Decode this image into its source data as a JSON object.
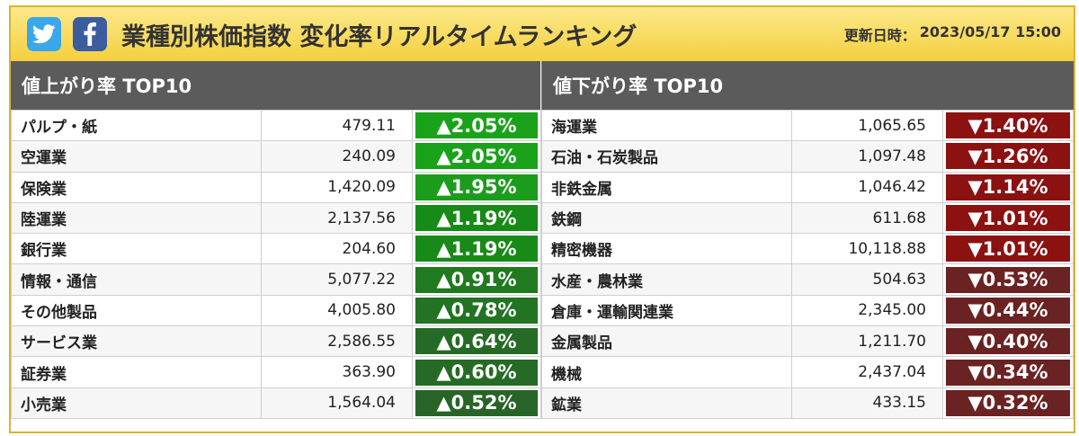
{
  "header": {
    "twitter_icon": "twitter-bird-icon",
    "facebook_icon": "facebook-f-icon",
    "title": "業種別株価指数 変化率リアルタイムランキング",
    "updated_label": "更新日時：",
    "updated_value": "2023/05/17 15:00"
  },
  "gainers": {
    "heading": "値上がり率 TOP10",
    "rows": [
      {
        "name": "パルプ・紙",
        "value": "479.11",
        "change": "▲2.05%",
        "color": "#1aa31a"
      },
      {
        "name": "空運業",
        "value": "240.09",
        "change": "▲2.05%",
        "color": "#1aa31a"
      },
      {
        "name": "保険業",
        "value": "1,420.09",
        "change": "▲1.95%",
        "color": "#1c9c1c"
      },
      {
        "name": "陸運業",
        "value": "2,137.56",
        "change": "▲1.19%",
        "color": "#178a17"
      },
      {
        "name": "銀行業",
        "value": "204.60",
        "change": "▲1.19%",
        "color": "#178a17"
      },
      {
        "name": "情報・通信",
        "value": "5,077.22",
        "change": "▲0.91%",
        "color": "#207a20"
      },
      {
        "name": "その他製品",
        "value": "4,005.80",
        "change": "▲0.78%",
        "color": "#227322"
      },
      {
        "name": "サービス業",
        "value": "2,586.55",
        "change": "▲0.64%",
        "color": "#256b25"
      },
      {
        "name": "証券業",
        "value": "363.90",
        "change": "▲0.60%",
        "color": "#256b25"
      },
      {
        "name": "小売業",
        "value": "1,564.04",
        "change": "▲0.52%",
        "color": "#286428"
      }
    ]
  },
  "losers": {
    "heading": "値下がり率 TOP10",
    "rows": [
      {
        "name": "海運業",
        "value": "1,065.65",
        "change": "▼1.40%",
        "color": "#8c1111"
      },
      {
        "name": "石油・石炭製品",
        "value": "1,097.48",
        "change": "▼1.26%",
        "color": "#8c1111"
      },
      {
        "name": "非鉄金属",
        "value": "1,046.42",
        "change": "▼1.14%",
        "color": "#8c1111"
      },
      {
        "name": "鉄鋼",
        "value": "611.68",
        "change": "▼1.01%",
        "color": "#8c1111"
      },
      {
        "name": "精密機器",
        "value": "10,118.88",
        "change": "▼1.01%",
        "color": "#8c1111"
      },
      {
        "name": "水産・農林業",
        "value": "504.63",
        "change": "▼0.53%",
        "color": "#6b2222"
      },
      {
        "name": "倉庫・運輸関連業",
        "value": "2,345.00",
        "change": "▼0.44%",
        "color": "#6b2222"
      },
      {
        "name": "金属製品",
        "value": "1,211.70",
        "change": "▼0.40%",
        "color": "#6b2222"
      },
      {
        "name": "機械",
        "value": "2,437.04",
        "change": "▼0.34%",
        "color": "#6b2222"
      },
      {
        "name": "鉱業",
        "value": "433.15",
        "change": "▼0.32%",
        "color": "#6b2222"
      }
    ]
  }
}
